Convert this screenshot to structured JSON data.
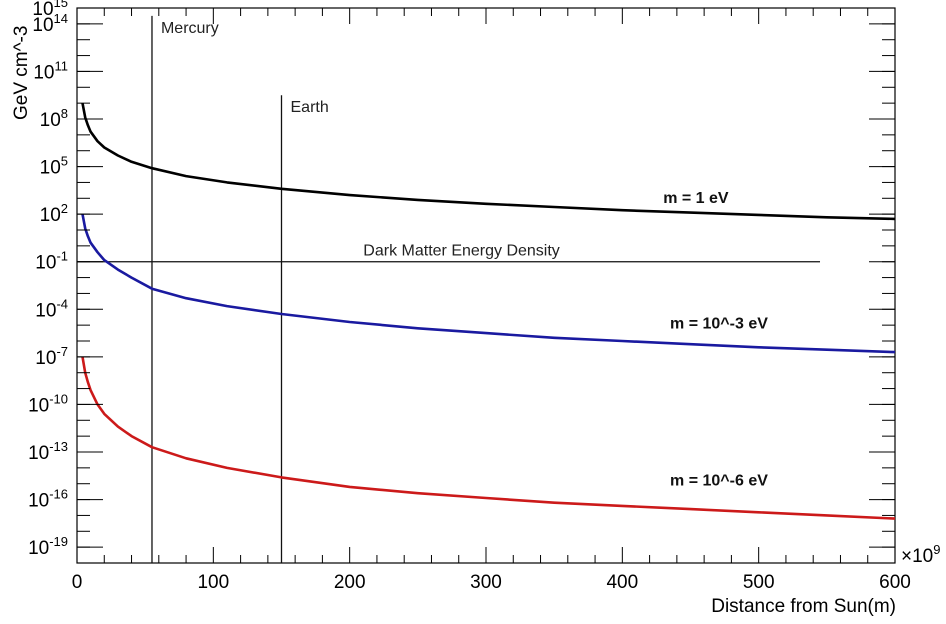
{
  "chart_data": {
    "type": "line",
    "xlabel": "Distance from Sun(m)",
    "ylabel": "GeV cm^-3",
    "x_multiplier_label": "×10",
    "x_multiplier_exp": "9",
    "x_ticks": [
      "0",
      "100",
      "200",
      "300",
      "400",
      "500",
      "600"
    ],
    "xlim": [
      0,
      600
    ],
    "y_scale": "log",
    "ylim_log10": [
      -20,
      15
    ],
    "y_ticks": [
      {
        "base": "10",
        "exp": "15",
        "log": 15
      },
      {
        "base": "10",
        "exp": "14",
        "log": 14
      },
      {
        "base": "10",
        "exp": "11",
        "log": 11
      },
      {
        "base": "10",
        "exp": "8",
        "log": 8
      },
      {
        "base": "10",
        "exp": "5",
        "log": 5
      },
      {
        "base": "10",
        "exp": "2",
        "log": 2
      },
      {
        "base": "10",
        "exp": "-1",
        "log": -1
      },
      {
        "base": "10",
        "exp": "-4",
        "log": -4
      },
      {
        "base": "10",
        "exp": "-7",
        "log": -7
      },
      {
        "base": "10",
        "exp": "-10",
        "log": -10
      },
      {
        "base": "10",
        "exp": "-13",
        "log": -13
      },
      {
        "base": "10",
        "exp": "-16",
        "log": -16
      },
      {
        "base": "10",
        "exp": "-19",
        "log": -19
      }
    ],
    "series": [
      {
        "name": "m = 1 eV",
        "color": "#000000",
        "x": [
          4,
          6,
          8,
          10,
          15,
          20,
          30,
          40,
          55,
          80,
          110,
          150,
          200,
          250,
          300,
          350,
          400,
          450,
          500,
          550,
          600
        ],
        "log10_y": [
          9.0,
          8.1,
          7.6,
          7.2,
          6.6,
          6.2,
          5.7,
          5.3,
          4.9,
          4.4,
          4.0,
          3.6,
          3.2,
          2.9,
          2.65,
          2.45,
          2.25,
          2.1,
          1.95,
          1.8,
          1.7
        ]
      },
      {
        "name": "m = 10^-3 eV",
        "color": "#1a1aa0",
        "x": [
          4,
          6,
          8,
          10,
          15,
          20,
          30,
          40,
          55,
          80,
          110,
          150,
          200,
          250,
          300,
          350,
          400,
          450,
          500,
          550,
          600
        ],
        "log10_y": [
          2.0,
          1.1,
          0.6,
          0.2,
          -0.4,
          -0.9,
          -1.5,
          -2.0,
          -2.7,
          -3.3,
          -3.8,
          -4.3,
          -4.8,
          -5.2,
          -5.5,
          -5.8,
          -6.0,
          -6.2,
          -6.4,
          -6.55,
          -6.7
        ]
      },
      {
        "name": "m = 10^-6 eV",
        "color": "#cc1a1a",
        "x": [
          4,
          6,
          8,
          10,
          15,
          20,
          30,
          40,
          55,
          80,
          110,
          150,
          200,
          250,
          300,
          350,
          400,
          450,
          500,
          550,
          600
        ],
        "log10_y": [
          -7.0,
          -8.0,
          -8.6,
          -9.1,
          -10.0,
          -10.6,
          -11.4,
          -12.0,
          -12.7,
          -13.4,
          -14.0,
          -14.6,
          -15.2,
          -15.6,
          -15.9,
          -16.2,
          -16.4,
          -16.6,
          -16.8,
          -17.0,
          -17.2
        ]
      }
    ],
    "series_labels": [
      {
        "text": "m = 1 eV",
        "x": 430,
        "log10_y": 2.7
      },
      {
        "text": "m = 10^-3 eV",
        "x": 435,
        "log10_y": -5.2
      },
      {
        "text": "m = 10^-6 eV",
        "x": 435,
        "log10_y": -15.1
      }
    ],
    "vertical_lines": [
      {
        "label": "Mercury",
        "x": 55,
        "from_log10": -20,
        "to_log10": 14.5
      },
      {
        "label": "Earth",
        "x": 150,
        "from_log10": -20,
        "to_log10": 9.5
      }
    ],
    "horizontal_lines": [
      {
        "label": "Dark Matter Energy Density",
        "log10_y": -1.0,
        "x_from": 0,
        "x_to": 545
      }
    ]
  }
}
